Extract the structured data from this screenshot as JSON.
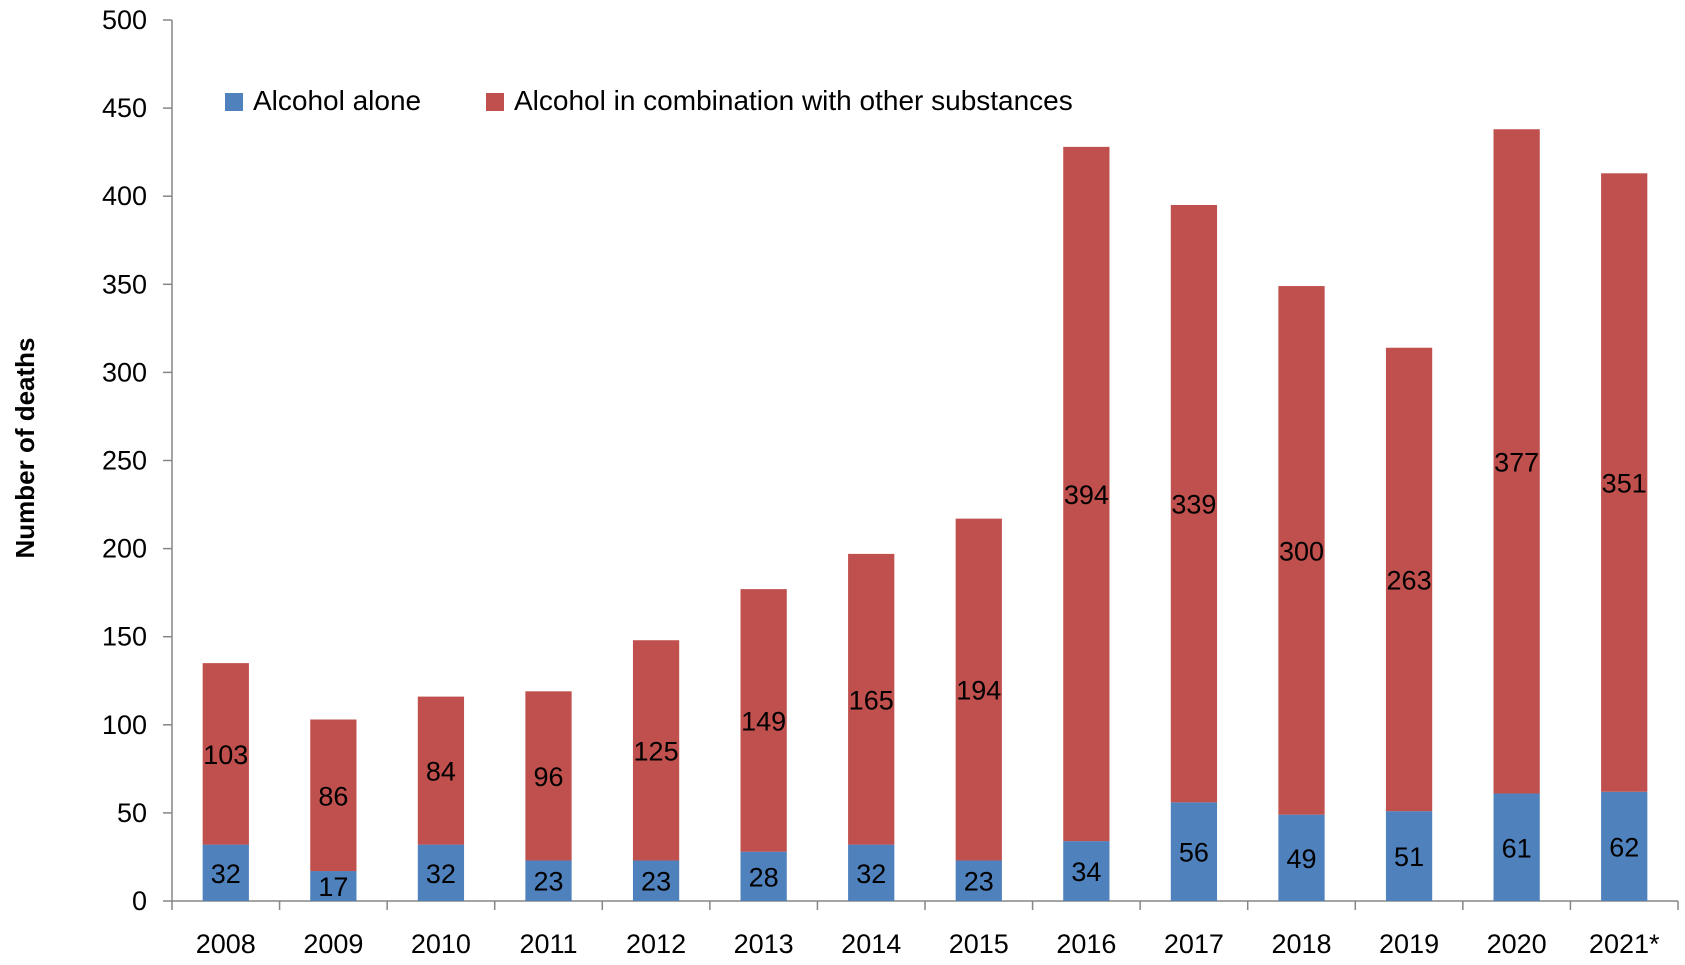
{
  "chart_data": {
    "type": "bar",
    "stacked": true,
    "title": "",
    "xlabel": "",
    "ylabel": "Number of deaths",
    "ylim": [
      0,
      500
    ],
    "yticks": [
      0,
      50,
      100,
      150,
      200,
      250,
      300,
      350,
      400,
      450,
      500
    ],
    "grid": false,
    "legend_position": "top-left",
    "categories": [
      "2008",
      "2009",
      "2010",
      "2011",
      "2012",
      "2013",
      "2014",
      "2015",
      "2016",
      "2017",
      "2018",
      "2019",
      "2020",
      "2021*"
    ],
    "series": [
      {
        "name": "Alcohol alone",
        "color": "#4f81bd",
        "values": [
          32,
          17,
          32,
          23,
          23,
          28,
          32,
          23,
          34,
          56,
          49,
          51,
          61,
          62
        ]
      },
      {
        "name": "Alcohol in combination with other substances",
        "color": "#c0504d",
        "values": [
          103,
          86,
          84,
          96,
          125,
          149,
          165,
          194,
          394,
          339,
          300,
          263,
          377,
          351
        ]
      }
    ]
  }
}
